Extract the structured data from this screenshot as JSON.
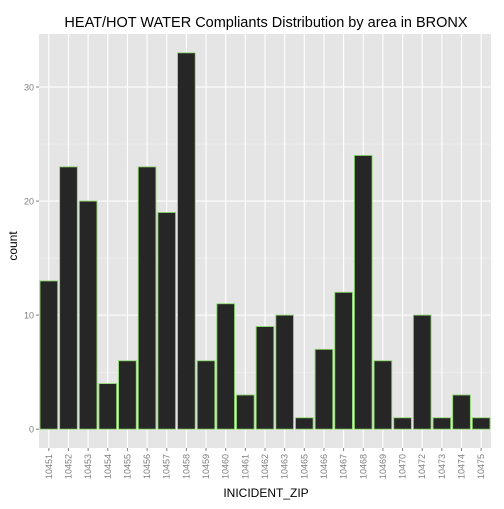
{
  "chart_data": {
    "type": "bar",
    "title": "HEAT/HOT WATER Compliants Distribution by area in BRONX",
    "xlabel": "INICIDENT_ZIP",
    "ylabel": "count",
    "categories": [
      "10451",
      "10452",
      "10453",
      "10454",
      "10455",
      "10456",
      "10457",
      "10458",
      "10459",
      "10460",
      "10461",
      "10462",
      "10463",
      "10465",
      "10466",
      "10467",
      "10468",
      "10469",
      "10470",
      "10472",
      "10473",
      "10474",
      "10475"
    ],
    "values": [
      13,
      23,
      20,
      4,
      6,
      23,
      19,
      33,
      6,
      11,
      3,
      9,
      10,
      1,
      7,
      12,
      24,
      6,
      1,
      10,
      1,
      3,
      1
    ],
    "ylim": [
      -1.65,
      34.65
    ],
    "yticks": [
      0,
      10,
      20,
      30
    ],
    "grid": true,
    "legend": "none",
    "colors": {
      "panel": "#e5e5e5",
      "grid_major": "#ffffff",
      "grid_minor": "#f2f2f2",
      "bar_fill": "#262626",
      "bar_stroke": "#8ad46a",
      "tick_text": "#7f7f7f",
      "label_text": "#000000"
    }
  }
}
